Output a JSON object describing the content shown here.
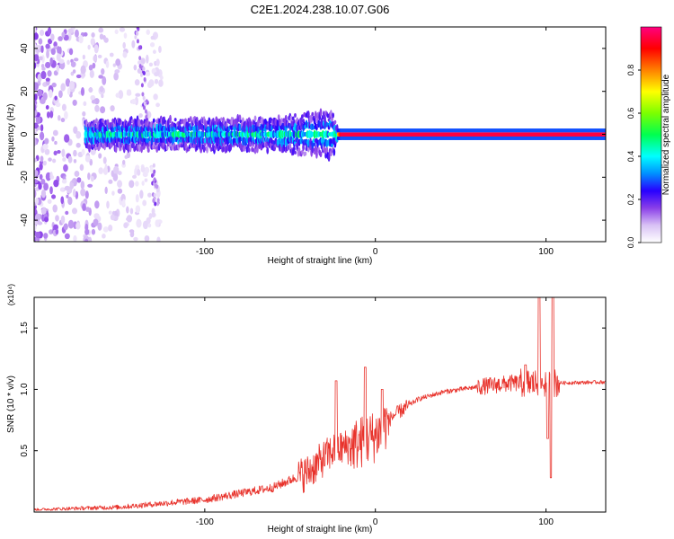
{
  "figure": {
    "title": "C2E1.2024.238.10.07.G06",
    "colors": {
      "snr_line": "#e8322b",
      "axis": "#000000"
    }
  },
  "chart_data": [
    {
      "type": "heatmap",
      "name": "spectrogram",
      "xlabel": "Height of straight line (km)",
      "ylabel": "Frequency (Hz)",
      "xlim": [
        -200,
        135
      ],
      "ylim": [
        -50,
        50
      ],
      "xticks": [
        -100,
        0,
        100
      ],
      "xtick_labels": [
        "-100",
        "0",
        "100"
      ],
      "yticks": [
        -40,
        -20,
        0,
        20,
        40
      ],
      "ytick_labels": [
        "-40",
        "-20",
        "0",
        "20",
        "40"
      ],
      "grid": false,
      "colorbar": {
        "label": "Normalized spectral amplitude",
        "range": [
          0,
          1
        ],
        "ticks": [
          0.0,
          0.2,
          0.4,
          0.6,
          0.8
        ],
        "tick_labels": [
          "0.0",
          "0.2",
          "0.4",
          "0.6",
          "0.8"
        ],
        "stops": [
          {
            "v": 0.0,
            "color": "#ffffff"
          },
          {
            "v": 0.08,
            "color": "#d9c2f5"
          },
          {
            "v": 0.16,
            "color": "#8a3fe8"
          },
          {
            "v": 0.24,
            "color": "#2800ff"
          },
          {
            "v": 0.32,
            "color": "#0090ff"
          },
          {
            "v": 0.4,
            "color": "#00ffff"
          },
          {
            "v": 0.5,
            "color": "#00ff50"
          },
          {
            "v": 0.6,
            "color": "#7cff00"
          },
          {
            "v": 0.7,
            "color": "#ffff00"
          },
          {
            "v": 0.8,
            "color": "#ff8000"
          },
          {
            "v": 0.9,
            "color": "#ff0000"
          },
          {
            "v": 1.0,
            "color": "#ff0080"
          }
        ]
      },
      "band_center_hz": [
        {
          "x": -170,
          "y": 0
        },
        {
          "x": -25,
          "y": 0
        },
        {
          "x": 135,
          "y": 0
        }
      ],
      "band_halfwidth_hz": [
        {
          "x": -170,
          "y": 6
        },
        {
          "x": -60,
          "y": 7
        },
        {
          "x": -25,
          "y": 10
        },
        {
          "x": -22,
          "y": 2
        },
        {
          "x": 135,
          "y": 2
        }
      ],
      "band_peak_amplitude": [
        {
          "x": -170,
          "y": 0.45
        },
        {
          "x": -25,
          "y": 0.45
        },
        {
          "x": -20,
          "y": 0.95
        },
        {
          "x": 135,
          "y": 0.95
        }
      ]
    },
    {
      "type": "line",
      "name": "snr",
      "xlabel": "Height of straight line (km)",
      "ylabel": "SNR (10 * v/v)",
      "y_multiplier": "(x10⁴)",
      "xlim": [
        -200,
        135
      ],
      "ylim": [
        0,
        1.75
      ],
      "xticks": [
        -100,
        0,
        100
      ],
      "xtick_labels": [
        "-100",
        "0",
        "100"
      ],
      "yticks": [
        0.5,
        1.0,
        1.5
      ],
      "ytick_labels": [
        "0.5",
        "1.0",
        "1.5"
      ],
      "grid": false,
      "series": [
        {
          "values_envelope": [
            {
              "x": -200,
              "y": 0.02
            },
            {
              "x": -150,
              "y": 0.04
            },
            {
              "x": -100,
              "y": 0.1
            },
            {
              "x": -60,
              "y": 0.2
            },
            {
              "x": -40,
              "y": 0.32
            },
            {
              "x": -25,
              "y": 0.5
            },
            {
              "x": -12,
              "y": 0.55
            },
            {
              "x": 0,
              "y": 0.62
            },
            {
              "x": 10,
              "y": 0.78
            },
            {
              "x": 25,
              "y": 0.92
            },
            {
              "x": 40,
              "y": 0.98
            },
            {
              "x": 60,
              "y": 1.02
            },
            {
              "x": 80,
              "y": 1.05
            },
            {
              "x": 100,
              "y": 1.05
            },
            {
              "x": 135,
              "y": 1.06
            }
          ],
          "spikes": [
            {
              "x": -23,
              "y": 1.07
            },
            {
              "x": -6,
              "y": 1.18
            },
            {
              "x": 4,
              "y": 1.0
            },
            {
              "x": 88,
              "y": 1.2
            },
            {
              "x": 96,
              "y": 1.75
            },
            {
              "x": 101,
              "y": 0.6
            },
            {
              "x": 103,
              "y": 0.28
            },
            {
              "x": 104,
              "y": 1.75
            }
          ]
        }
      ]
    }
  ]
}
